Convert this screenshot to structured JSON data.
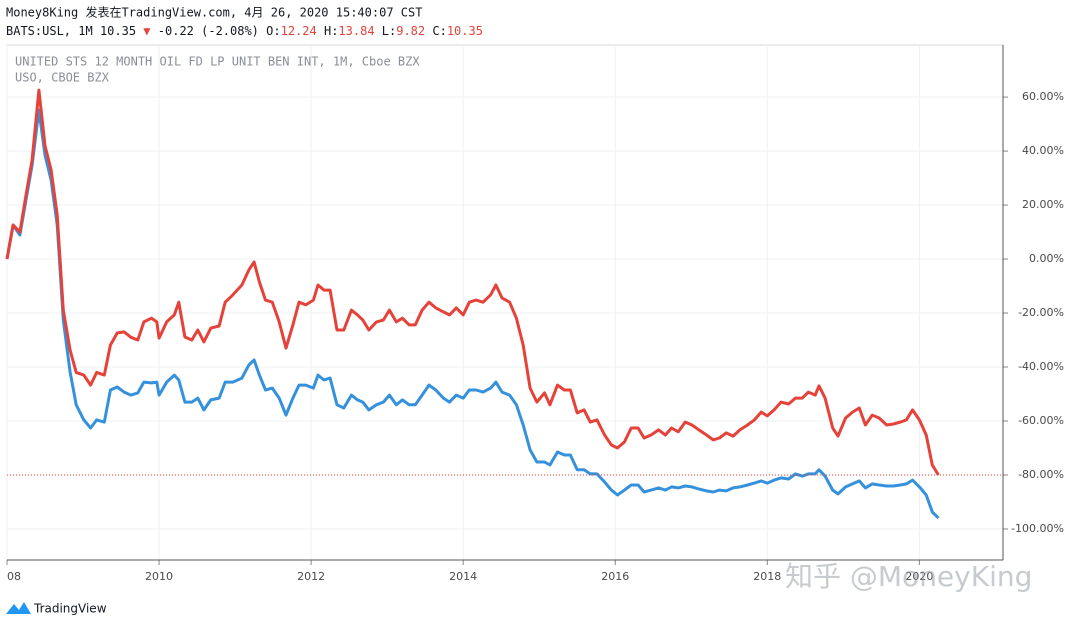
{
  "chart_data": {
    "type": "line",
    "title": "Money8King 发表在TradingView.com, 4月 26, 2020 15:40:07 CST",
    "quote": {
      "symbol": "BATS:USL, 1M",
      "last": 10.35,
      "change": "-0.22 (-2.08%)",
      "ohlc": [
        {
          "label": "O:",
          "value": 12.24
        },
        {
          "label": "H:",
          "value": 13.84
        },
        {
          "label": "L:",
          "value": 9.82
        },
        {
          "label": "C:",
          "value": 10.35
        }
      ]
    },
    "watermark": "知乎 @MoneyKing",
    "branding": "TradingView",
    "x": [
      2008.0,
      2008.08,
      2008.17,
      2008.25,
      2008.33,
      2008.42,
      2008.5,
      2008.58,
      2008.66,
      2008.74,
      2008.83,
      2008.91,
      2009.01,
      2009.1,
      2009.18,
      2009.28,
      2009.36,
      2009.45,
      2009.54,
      2009.63,
      2009.72,
      2009.8,
      2009.9,
      2009.97,
      2010.0,
      2010.1,
      2010.2,
      2010.26,
      2010.34,
      2010.43,
      2010.51,
      2010.59,
      2010.68,
      2010.79,
      2010.87,
      2010.97,
      2011.09,
      2011.18,
      2011.25,
      2011.32,
      2011.4,
      2011.49,
      2011.58,
      2011.67,
      2011.76,
      2011.84,
      2011.93,
      2012.03,
      2012.09,
      2012.17,
      2012.25,
      2012.34,
      2012.43,
      2012.53,
      2012.61,
      2012.68,
      2012.76,
      2012.86,
      2012.95,
      2013.03,
      2013.12,
      2013.2,
      2013.29,
      2013.37,
      2013.46,
      2013.55,
      2013.64,
      2013.74,
      2013.82,
      2013.91,
      2014.0,
      2014.08,
      2014.17,
      2014.26,
      2014.36,
      2014.43,
      2014.51,
      2014.61,
      2014.7,
      2014.79,
      2014.88,
      2014.97,
      2015.07,
      2015.14,
      2015.24,
      2015.33,
      2015.41,
      2015.5,
      2015.59,
      2015.67,
      2015.76,
      2015.86,
      2015.95,
      2016.03,
      2016.12,
      2016.21,
      2016.3,
      2016.38,
      2016.47,
      2016.57,
      2016.66,
      2016.74,
      2016.83,
      2016.92,
      2017.01,
      2017.1,
      2017.2,
      2017.29,
      2017.37,
      2017.46,
      2017.55,
      2017.64,
      2017.74,
      2017.83,
      2017.92,
      2018.0,
      2018.09,
      2018.18,
      2018.28,
      2018.37,
      2018.46,
      2018.54,
      2018.63,
      2018.68,
      2018.76,
      2018.86,
      2018.93,
      2019.03,
      2019.12,
      2019.21,
      2019.29,
      2019.38,
      2019.47,
      2019.57,
      2019.66,
      2019.75,
      2019.83,
      2019.91,
      2020.0,
      2020.09,
      2020.17,
      2020.25
    ],
    "series": [
      {
        "name": "UNITED STS 12 MONTH OIL FD LP UNIT BEN INT, 1M, Cboe BZX",
        "color": "#e5423a",
        "values": [
          0,
          12.6,
          10,
          23.7,
          36.7,
          62.6,
          42,
          33,
          16.3,
          -19,
          -33.7,
          -42,
          -43,
          -46.7,
          -42,
          -43,
          -31.9,
          -27.4,
          -27,
          -29,
          -30,
          -23.3,
          -21.9,
          -23.3,
          -29.3,
          -23.3,
          -20.7,
          -16,
          -28.9,
          -30,
          -26.3,
          -30.7,
          -25.6,
          -24.8,
          -16,
          -13.3,
          -9.6,
          -4.1,
          -1.1,
          -8.5,
          -15.2,
          -16,
          -23.3,
          -33,
          -24.4,
          -16,
          -17,
          -15.2,
          -9.6,
          -11.5,
          -11.5,
          -26.3,
          -26.3,
          -18.9,
          -20.7,
          -22.6,
          -26.3,
          -23.3,
          -22.6,
          -18.9,
          -23.3,
          -21.9,
          -24.4,
          -24.4,
          -18.9,
          -16,
          -18.1,
          -19.6,
          -20.7,
          -18.1,
          -20.7,
          -16,
          -15.2,
          -16,
          -13.3,
          -9.6,
          -14.4,
          -16,
          -21.9,
          -31.9,
          -47.8,
          -53,
          -49.6,
          -54,
          -46.7,
          -48.5,
          -48.5,
          -57,
          -55.9,
          -60.4,
          -59.6,
          -65.2,
          -68.9,
          -70,
          -67.8,
          -62.6,
          -62.6,
          -66.3,
          -65.2,
          -63.3,
          -65.2,
          -62.6,
          -64,
          -60.4,
          -61.5,
          -63.3,
          -65.2,
          -67,
          -66.3,
          -64.4,
          -65.6,
          -63.3,
          -61.5,
          -59.6,
          -56.7,
          -58.1,
          -55.9,
          -53,
          -53.7,
          -51.5,
          -51.5,
          -49.3,
          -50.4,
          -47,
          -51.5,
          -62.6,
          -65.6,
          -58.9,
          -56.7,
          -55.2,
          -61.5,
          -57.8,
          -58.9,
          -61.5,
          -61.1,
          -60.4,
          -59.6,
          -55.9,
          -59.6,
          -65.2,
          -76.3,
          -80
        ]
      },
      {
        "name": "USO, CBOE BZX",
        "color": "#3591dc",
        "values": [
          0,
          12.6,
          8.9,
          21.9,
          34.8,
          55.2,
          38.5,
          29.3,
          12.6,
          -22.6,
          -41.9,
          -54,
          -59.6,
          -62.6,
          -59.6,
          -60.4,
          -48.5,
          -47.4,
          -49.3,
          -50.4,
          -49.6,
          -45.6,
          -45.9,
          -45.6,
          -50.4,
          -45.6,
          -43,
          -44.8,
          -53,
          -53,
          -51.5,
          -55.9,
          -52.2,
          -51.5,
          -45.6,
          -45.6,
          -44.1,
          -39.3,
          -37.4,
          -43,
          -48.5,
          -47.8,
          -51.5,
          -57.8,
          -51.5,
          -46.7,
          -46.7,
          -47.8,
          -43,
          -44.8,
          -44.1,
          -54,
          -55.2,
          -50.4,
          -52.2,
          -53,
          -55.9,
          -54,
          -53,
          -50.4,
          -54,
          -52.2,
          -54,
          -54,
          -50.4,
          -46.7,
          -48.5,
          -51.5,
          -53,
          -50.4,
          -51.5,
          -48.5,
          -48.5,
          -49.3,
          -47.8,
          -45.6,
          -49.3,
          -50.4,
          -54,
          -61.5,
          -70.7,
          -75.2,
          -75.2,
          -76.3,
          -71.5,
          -72.6,
          -72.6,
          -78.1,
          -78.1,
          -79.6,
          -79.6,
          -82.6,
          -85.6,
          -87.4,
          -85.6,
          -83.7,
          -83.7,
          -86.3,
          -85.6,
          -84.8,
          -85.6,
          -84.4,
          -84.8,
          -84.1,
          -84.4,
          -85.2,
          -85.9,
          -86.3,
          -85.6,
          -85.9,
          -84.8,
          -84.4,
          -83.7,
          -83,
          -82.2,
          -83,
          -81.9,
          -81.1,
          -81.5,
          -79.6,
          -80.4,
          -79.6,
          -79.6,
          -78.1,
          -80.4,
          -85.6,
          -87,
          -84.4,
          -83.3,
          -82.2,
          -84.8,
          -83.3,
          -83.7,
          -84.1,
          -84.1,
          -83.7,
          -83.3,
          -81.9,
          -84.4,
          -87.4,
          -93.7,
          -95.9
        ]
      }
    ],
    "xlim": [
      2008,
      2021.1
    ],
    "xticks": [
      {
        "value": 2008,
        "label": "08"
      },
      2010,
      2012,
      2014,
      2016,
      2018,
      2020
    ],
    "ylim": [
      -111.5,
      79.3
    ],
    "yticks": [
      {
        "value": 60,
        "label": "60.00%"
      },
      {
        "value": 40,
        "label": "40.00%"
      },
      {
        "value": 20,
        "label": "20.00%"
      },
      {
        "value": 0,
        "label": "0.00%"
      },
      {
        "value": -20,
        "label": "-20.00%"
      },
      {
        "value": -40,
        "label": "-40.00%"
      },
      {
        "value": -60,
        "label": "-60.00%"
      },
      {
        "value": -80,
        "label": "-80.00%"
      },
      {
        "value": -100,
        "label": "-100.00%"
      }
    ],
    "grid": true,
    "y_axis_side": "right"
  }
}
